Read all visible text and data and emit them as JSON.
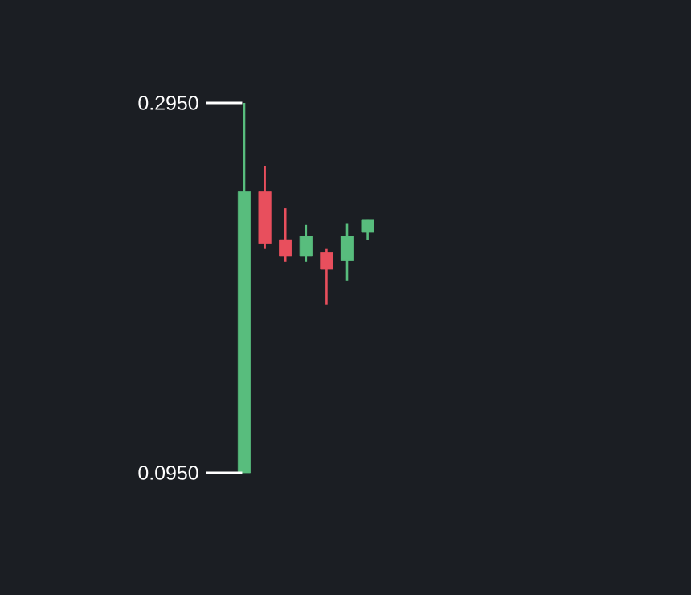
{
  "chart_data": {
    "type": "candlestick",
    "categories": [
      null,
      null,
      null,
      null,
      null,
      null,
      null
    ],
    "ohlc": [
      [
        0.095,
        0.295,
        0.095,
        0.247
      ],
      [
        0.247,
        0.261,
        0.216,
        0.219
      ],
      [
        0.221,
        0.238,
        0.209,
        0.212
      ],
      [
        0.212,
        0.229,
        0.209,
        0.223
      ],
      [
        0.214,
        0.216,
        0.186,
        0.205
      ],
      [
        0.21,
        0.23,
        0.199,
        0.223
      ],
      [
        0.225,
        0.232,
        0.221,
        0.232
      ]
    ],
    "colors": [
      "#58bd7d",
      "#e84f5d",
      "#e84f5d",
      "#58bd7d",
      "#e84f5d",
      "#58bd7d",
      "#58bd7d"
    ],
    "ref_lines": [
      {
        "axis": "y",
        "value": 0.295,
        "label": "0.2950",
        "color": "#ffffff"
      },
      {
        "axis": "y",
        "value": 0.095,
        "label": "0.0950",
        "color": "#ffffff"
      }
    ]
  }
}
